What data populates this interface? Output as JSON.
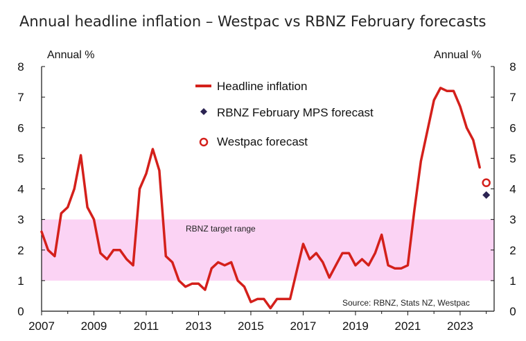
{
  "chart_data": {
    "type": "line",
    "title": "Annual headline inflation – Westpac vs RBNZ February forecasts",
    "y_label_left": "Annual %",
    "y_label_right": "Annual %",
    "ylim": [
      0,
      8
    ],
    "y_ticks": [
      0,
      1,
      2,
      3,
      4,
      5,
      6,
      7,
      8
    ],
    "xlim": [
      2007.0,
      2024.3
    ],
    "x_ticks": [
      2007,
      2009,
      2011,
      2013,
      2015,
      2017,
      2019,
      2021,
      2023
    ],
    "target_band": {
      "low": 1,
      "high": 3,
      "label": "RBNZ target range",
      "color": "#fbd3f4"
    },
    "series": [
      {
        "name": "Headline inflation",
        "color": "#d4201b",
        "points": [
          [
            2007.0,
            2.6
          ],
          [
            2007.25,
            2.0
          ],
          [
            2007.5,
            1.8
          ],
          [
            2007.75,
            3.2
          ],
          [
            2008.0,
            3.4
          ],
          [
            2008.25,
            4.0
          ],
          [
            2008.5,
            5.1
          ],
          [
            2008.75,
            3.4
          ],
          [
            2009.0,
            3.0
          ],
          [
            2009.25,
            1.9
          ],
          [
            2009.5,
            1.7
          ],
          [
            2009.75,
            2.0
          ],
          [
            2010.0,
            2.0
          ],
          [
            2010.25,
            1.7
          ],
          [
            2010.5,
            1.5
          ],
          [
            2010.75,
            4.0
          ],
          [
            2011.0,
            4.5
          ],
          [
            2011.25,
            5.3
          ],
          [
            2011.5,
            4.6
          ],
          [
            2011.75,
            1.8
          ],
          [
            2012.0,
            1.6
          ],
          [
            2012.25,
            1.0
          ],
          [
            2012.5,
            0.8
          ],
          [
            2012.75,
            0.9
          ],
          [
            2013.0,
            0.9
          ],
          [
            2013.25,
            0.7
          ],
          [
            2013.5,
            1.4
          ],
          [
            2013.75,
            1.6
          ],
          [
            2014.0,
            1.5
          ],
          [
            2014.25,
            1.6
          ],
          [
            2014.5,
            1.0
          ],
          [
            2014.75,
            0.8
          ],
          [
            2015.0,
            0.3
          ],
          [
            2015.25,
            0.4
          ],
          [
            2015.5,
            0.4
          ],
          [
            2015.75,
            0.1
          ],
          [
            2016.0,
            0.4
          ],
          [
            2016.25,
            0.4
          ],
          [
            2016.5,
            0.4
          ],
          [
            2016.75,
            1.3
          ],
          [
            2017.0,
            2.2
          ],
          [
            2017.25,
            1.7
          ],
          [
            2017.5,
            1.9
          ],
          [
            2017.75,
            1.6
          ],
          [
            2018.0,
            1.1
          ],
          [
            2018.25,
            1.5
          ],
          [
            2018.5,
            1.9
          ],
          [
            2018.75,
            1.9
          ],
          [
            2019.0,
            1.5
          ],
          [
            2019.25,
            1.7
          ],
          [
            2019.5,
            1.5
          ],
          [
            2019.75,
            1.9
          ],
          [
            2020.0,
            2.5
          ],
          [
            2020.25,
            1.5
          ],
          [
            2020.5,
            1.4
          ],
          [
            2020.75,
            1.4
          ],
          [
            2021.0,
            1.5
          ],
          [
            2021.25,
            3.3
          ],
          [
            2021.5,
            4.9
          ],
          [
            2021.75,
            5.9
          ],
          [
            2022.0,
            6.9
          ],
          [
            2022.25,
            7.3
          ],
          [
            2022.5,
            7.2
          ],
          [
            2022.75,
            7.2
          ],
          [
            2023.0,
            6.7
          ],
          [
            2023.25,
            6.0
          ],
          [
            2023.5,
            5.6
          ],
          [
            2023.75,
            4.7
          ]
        ]
      },
      {
        "name": "RBNZ February MPS forecast",
        "color": "#2b2352",
        "marker": "diamond",
        "points": [
          [
            2024.0,
            3.8
          ]
        ]
      },
      {
        "name": "Westpac forecast",
        "color": "#d4201b",
        "marker": "open-circle",
        "points": [
          [
            2024.0,
            4.2
          ]
        ]
      }
    ],
    "legend": [
      "Headline inflation",
      "RBNZ February MPS forecast",
      "Westpac forecast"
    ],
    "legend_position": "top-center",
    "source": "Source: RBNZ, Stats NZ, Westpac"
  }
}
